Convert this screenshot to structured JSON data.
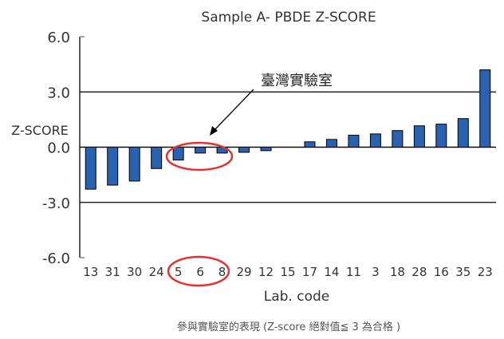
{
  "chart_data": {
    "type": "bar",
    "title": "Sample A- PBDE Z-SCORE",
    "xlabel": "Lab. code",
    "ylabel": "Z-SCORE",
    "ylim": [
      -6,
      6
    ],
    "yticks": [
      "6.0",
      "3.0",
      "0.0",
      "-3.0",
      "-6.0"
    ],
    "grid": "horizontal at ±3",
    "categories": [
      "13",
      "31",
      "30",
      "24",
      "5",
      "6",
      "8",
      "29",
      "12",
      "15",
      "17",
      "14",
      "11",
      "3",
      "18",
      "28",
      "16",
      "35",
      "23"
    ],
    "values": [
      -2.28,
      -2.06,
      -1.84,
      -1.16,
      -0.7,
      -0.32,
      -0.32,
      -0.28,
      -0.19,
      0,
      0.29,
      0.42,
      0.65,
      0.72,
      0.9,
      1.16,
      1.25,
      1.55,
      4.2
    ],
    "bar_color": "#2962b0",
    "annotation": {
      "text": "臺灣實驗室",
      "highlighted_codes": [
        "5",
        "6",
        "8"
      ],
      "highlight_color": "#e53030"
    },
    "caption": "參與實驗室的表現 (Z-score 絕對值≦ 3 為合格 )"
  }
}
